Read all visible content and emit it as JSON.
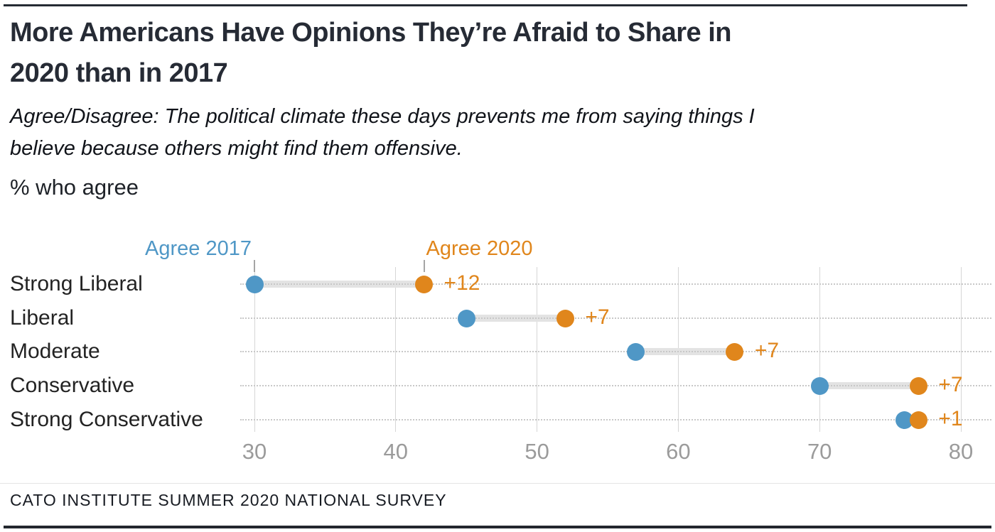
{
  "style": {
    "accent_blue": "#4f97c6",
    "accent_orange": "#e0861c",
    "grid_color": "#d6d6d6",
    "band_color": "#e3e3e3",
    "tick_color": "#9b9b9b",
    "rule_color": "#23272e"
  },
  "header": {
    "title_line1": "More Americans Have Opinions They’re Afraid to Share in",
    "title_line2": "2020 than in 2017",
    "subtitle_line1": "Agree/Disagree: The political climate these days prevents me from saying things I",
    "subtitle_line2": "believe because others might find them offensive.",
    "unit_label": "% who agree"
  },
  "chart_data": {
    "type": "scatter",
    "variant": "dumbbell",
    "title": "More Americans Have Opinions They’re Afraid to Share in 2020 than in 2017",
    "subtitle": "Agree/Disagree: The political climate these days prevents me from saying things I believe because others might find them offensive.",
    "ylabel": "",
    "xlabel": "% who agree",
    "categories": [
      "Strong Liberal",
      "Liberal",
      "Moderate",
      "Conservative",
      "Strong Conservative"
    ],
    "series": [
      {
        "name": "Agree 2017",
        "color": "#4f97c6",
        "values": [
          30,
          45,
          57,
          70,
          76
        ]
      },
      {
        "name": "Agree 2020",
        "color": "#e0861c",
        "values": [
          42,
          52,
          64,
          77,
          77
        ]
      }
    ],
    "diff_labels": [
      "+12",
      "+7",
      "+7",
      "+7",
      "+1"
    ],
    "x_ticks": [
      30,
      40,
      50,
      60,
      70,
      80
    ],
    "xlim": [
      30,
      80
    ],
    "grid": true,
    "legend_position": "top, inline above first row"
  },
  "footer": {
    "source": "CATO INSTITUTE SUMMER 2020 NATIONAL SURVEY"
  }
}
